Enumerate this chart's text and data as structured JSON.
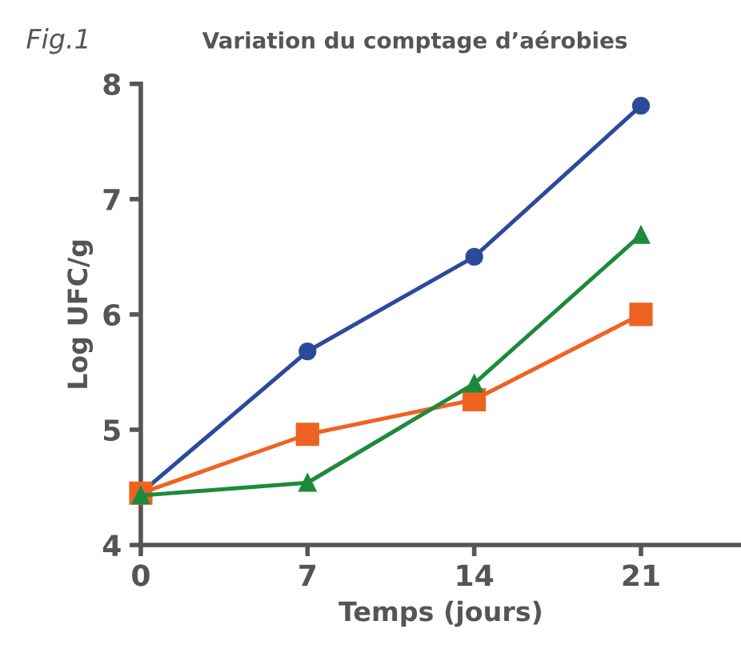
{
  "chart_data": {
    "type": "line",
    "title": "Variation du comptage d’aérobies",
    "annotations": [
      "Fig.1"
    ],
    "xlabel": "Temps (jours)",
    "ylabel": "Log UFC/g",
    "x": [
      0,
      7,
      14,
      21
    ],
    "xlim": [
      0,
      25.2
    ],
    "xticks": [
      0,
      7,
      14,
      21
    ],
    "ylim": [
      4,
      8
    ],
    "yticks": [
      4,
      5,
      6,
      7,
      8
    ],
    "grid": false,
    "legend": false,
    "line_style": "solid",
    "series": [
      {
        "color": "#2b4a9b",
        "marker": "circle",
        "values": [
          4.45,
          5.68,
          6.5,
          7.81
        ]
      },
      {
        "color": "#ee6322",
        "marker": "square",
        "values": [
          4.45,
          4.96,
          5.26,
          6.0
        ]
      },
      {
        "color": "#1d8a3b",
        "marker": "triangle",
        "values": [
          4.43,
          4.54,
          5.4,
          6.69
        ]
      }
    ]
  }
}
